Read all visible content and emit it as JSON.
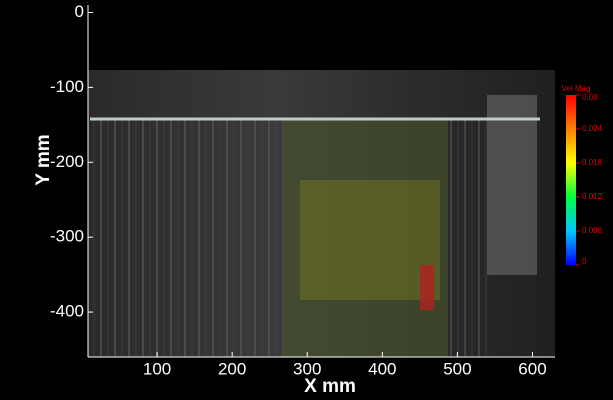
{
  "chart_data": {
    "type": "vector-field",
    "xlabel": "X mm",
    "ylabel": "Y mm",
    "xlim": [
      8,
      630
    ],
    "ylim": [
      -460,
      10
    ],
    "xticks": [
      100,
      200,
      300,
      400,
      500,
      600
    ],
    "yticks": [
      0,
      -100,
      -200,
      -300,
      -400
    ],
    "colorbar": {
      "title": "Vel Mag",
      "lim": [
        0,
        0.03
      ],
      "ticks": [
        0.03,
        0.024,
        0.018,
        0.012,
        0.006,
        0
      ],
      "colors": [
        "#0000ff",
        "#00c8ff",
        "#00ff40",
        "#ffff00",
        "#ff8000",
        "#ff0000"
      ]
    }
  }
}
